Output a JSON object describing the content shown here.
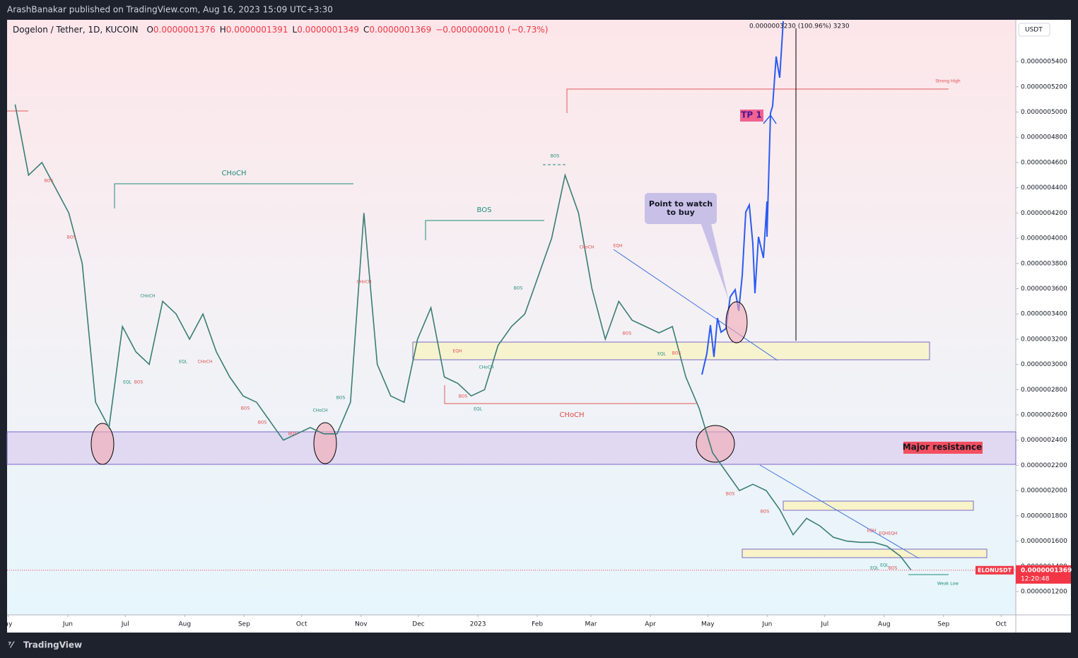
{
  "header": {
    "publisher": "ArashBanakar published on TradingView.com, Aug 16, 2023 15:09 UTC+3:30",
    "footer": "TradingView"
  },
  "chart_data": {
    "type": "line",
    "title": "Dogelon / Tether, 1D, KUCOIN",
    "ohlc_legend": [
      {
        "label": "O",
        "value": "0.0000001376"
      },
      {
        "label": "H",
        "value": "0.0000001391"
      },
      {
        "label": "L",
        "value": "0.0000001349"
      },
      {
        "label": "C",
        "value": "0.0000001369"
      }
    ],
    "change": "−0.0000000010 (−0.73%)",
    "currency": "USDT",
    "measure": "0.0000003230 (100.96%) 3230",
    "series": [
      {
        "name": "ELONUSDT",
        "color": "#3a7d74",
        "x": [
          0.5,
          1.5,
          2.5,
          3.5,
          4.5,
          5.5,
          6.5,
          7.5,
          8.5,
          9.5,
          10.5,
          11.5,
          12.5,
          13.5,
          14.5,
          15.5,
          16.5,
          17.5,
          18.5,
          19.5,
          20.5,
          21.5,
          22.5,
          23.5,
          24.5,
          25.5,
          26.5,
          27.5,
          28.5,
          29.5,
          30.5,
          31.5,
          32.5,
          33.5,
          34.5,
          35.5,
          36.5,
          37.5,
          38.5,
          39.5,
          40.5,
          41.5,
          42.5,
          43.5,
          44.5,
          45.5,
          46.5,
          47.5,
          48.5,
          49.5,
          50.5,
          51.5,
          52.5,
          53.5,
          54.5,
          55.5,
          56.5,
          57.5,
          58.5,
          59.5,
          60.5,
          61.5,
          62.5,
          63.5,
          64.5,
          65.5,
          66.5,
          67.3
        ],
        "values": [
          5.06e-07,
          4.5e-07,
          4.6e-07,
          4.4e-07,
          4.2e-07,
          3.8e-07,
          2.7e-07,
          2.5e-07,
          3.3e-07,
          3.1e-07,
          3e-07,
          3.5e-07,
          3.4e-07,
          3.2e-07,
          3.4e-07,
          3.1e-07,
          2.9e-07,
          2.75e-07,
          2.7e-07,
          2.55e-07,
          2.4e-07,
          2.45e-07,
          2.5e-07,
          2.45e-07,
          2.45e-07,
          2.7e-07,
          4.2e-07,
          3e-07,
          2.75e-07,
          2.7e-07,
          3.2e-07,
          3.45e-07,
          2.9e-07,
          2.85e-07,
          2.75e-07,
          2.8e-07,
          3.15e-07,
          3.3e-07,
          3.4e-07,
          3.7e-07,
          4e-07,
          4.5e-07,
          4.2e-07,
          3.6e-07,
          3.2e-07,
          3.5e-07,
          3.35e-07,
          3.3e-07,
          3.25e-07,
          3.3e-07,
          2.9e-07,
          2.65e-07,
          2.3e-07,
          2.15e-07,
          2e-07,
          2.05e-07,
          2e-07,
          1.85e-07,
          1.65e-07,
          1.78e-07,
          1.72e-07,
          1.63e-07,
          1.6e-07,
          1.59e-07,
          1.59e-07,
          1.56e-07,
          1.48e-07,
          1.369e-07
        ]
      }
    ],
    "last_price": {
      "value": 1.369e-07,
      "label": "0.0000001369",
      "countdown": "12:20:48",
      "color": "#f23645"
    },
    "xlim": [
      -0.1,
      75.1
    ],
    "xticks": [
      {
        "value": 0,
        "label": "ay"
      },
      {
        "value": 4.43,
        "label": "Jun"
      },
      {
        "value": 8.71,
        "label": "Jul"
      },
      {
        "value": 13.14,
        "label": "Aug"
      },
      {
        "value": 17.57,
        "label": "Sep"
      },
      {
        "value": 21.86,
        "label": "Oct"
      },
      {
        "value": 26.29,
        "label": "Nov"
      },
      {
        "value": 30.57,
        "label": "Dec"
      },
      {
        "value": 35.0,
        "label": "2023"
      },
      {
        "value": 39.43,
        "label": "Feb"
      },
      {
        "value": 43.43,
        "label": "Mar"
      },
      {
        "value": 47.86,
        "label": "Apr"
      },
      {
        "value": 52.14,
        "label": "May"
      },
      {
        "value": 56.57,
        "label": "Jun"
      },
      {
        "value": 60.86,
        "label": "Jul"
      },
      {
        "value": 65.29,
        "label": "Aug"
      },
      {
        "value": 69.71,
        "label": "Sep"
      },
      {
        "value": 74.0,
        "label": "Oct"
      }
    ],
    "ylim": [
      1.015e-07,
      5.731e-07
    ],
    "yticks": [
      {
        "value": 1.2e-07,
        "label": "0.0000001200"
      },
      {
        "value": 1.4e-07,
        "label": "0.0000001400"
      },
      {
        "value": 1.6e-07,
        "label": "0.0000001600"
      },
      {
        "value": 1.8e-07,
        "label": "0.0000001800"
      },
      {
        "value": 2e-07,
        "label": "0.0000002000"
      },
      {
        "value": 2.2e-07,
        "label": "0.0000002200"
      },
      {
        "value": 2.4e-07,
        "label": "0.0000002400"
      },
      {
        "value": 2.6e-07,
        "label": "0.0000002600"
      },
      {
        "value": 2.8e-07,
        "label": "0.0000002800"
      },
      {
        "value": 3e-07,
        "label": "0.0000003000"
      },
      {
        "value": 3.2e-07,
        "label": "0.0000003200"
      },
      {
        "value": 3.4e-07,
        "label": "0.0000003400"
      },
      {
        "value": 3.6e-07,
        "label": "0.0000003600"
      },
      {
        "value": 3.8e-07,
        "label": "0.0000003800"
      },
      {
        "value": 4e-07,
        "label": "0.0000004000"
      },
      {
        "value": 4.2e-07,
        "label": "0.0000004200"
      },
      {
        "value": 4.4e-07,
        "label": "0.0000004400"
      },
      {
        "value": 4.6e-07,
        "label": "0.0000004600"
      },
      {
        "value": 4.8e-07,
        "label": "0.0000004800"
      },
      {
        "value": 5e-07,
        "label": "0.0000005000"
      },
      {
        "value": 5.2e-07,
        "label": "0.0000005200"
      },
      {
        "value": 5.4e-07,
        "label": "0.0000005400"
      }
    ],
    "grid": false,
    "annotations": [
      "BOS",
      "BOS",
      "EQL",
      "BOS",
      "CHoCH",
      "BOS",
      "BOS",
      "BOS",
      "CHoCH",
      "EQH",
      "BOS",
      "CHoCH",
      "CHoCH",
      "EQH",
      "BOS",
      "BOS",
      "BOS",
      "BOS",
      "EQH",
      "EQH",
      "EQH",
      "BOS",
      "CHoCH",
      "BOS",
      "CHoCH",
      "EQL",
      "CHoCH",
      "BOS",
      "EQL",
      "CHoCH",
      "BOS",
      "BOS",
      "EQL",
      "EQL",
      "EQL",
      "Weak Low",
      "Strong High",
      "Point to watch",
      "to buy",
      "TP 1",
      "Major resistance"
    ]
  }
}
